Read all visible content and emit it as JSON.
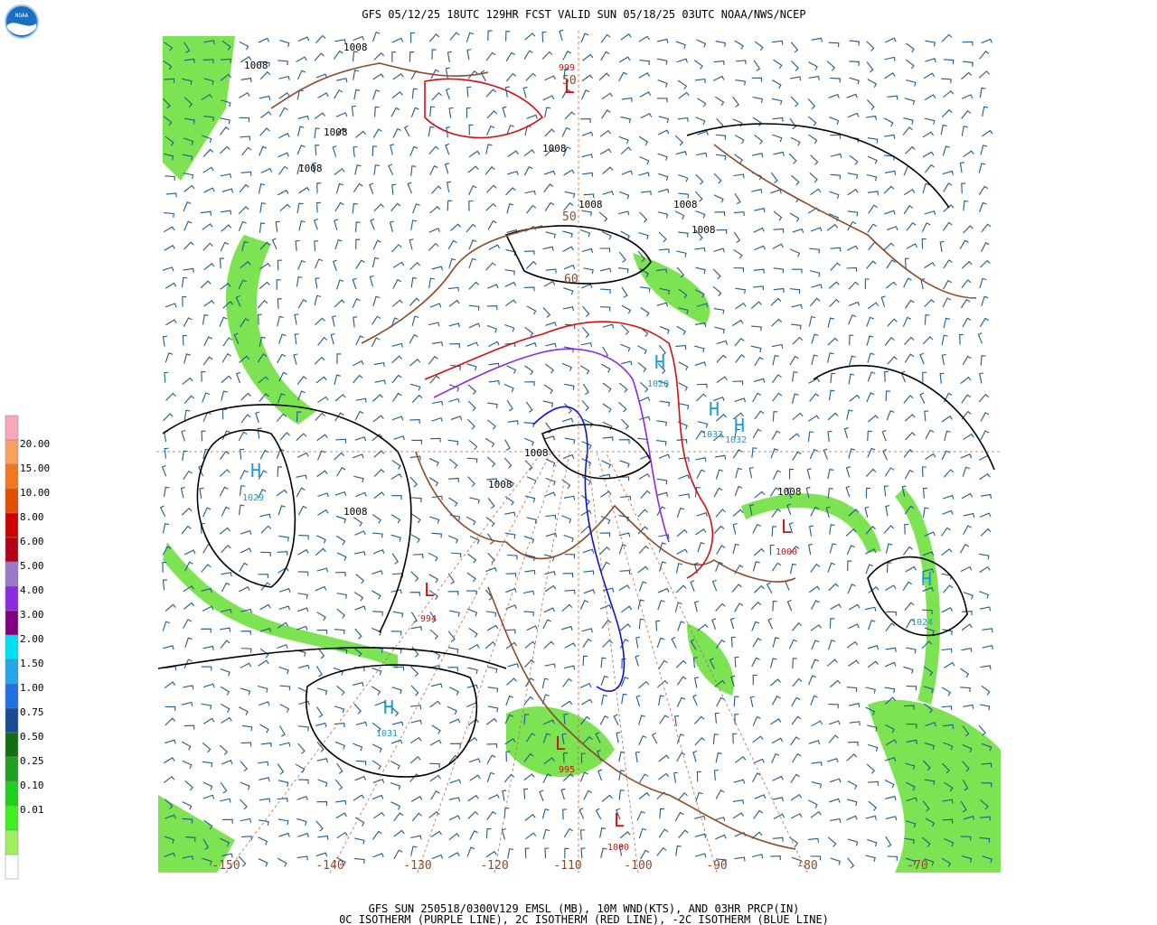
{
  "header": {
    "title": "GFS 05/12/25 18UTC 129HR FCST VALID SUN 05/18/25 03UTC NOAA/NWS/NCEP",
    "logo": "NOAA"
  },
  "footer": {
    "line1": "GFS SUN 250518/0300V129 EMSL (MB), 10M WND(KTS), AND 03HR PRCP(IN)",
    "line2": "0C ISOTHERM (PURPLE LINE), 2C ISOTHERM (RED LINE), -2C ISOTHERM (BLUE LINE)"
  },
  "legend": {
    "labels": [
      "20.00",
      "15.00",
      "10.00",
      "8.00",
      "6.00",
      "5.00",
      "4.00",
      "3.00",
      "2.00",
      "1.50",
      "1.00",
      "0.75",
      "0.50",
      "0.25",
      "0.10",
      "0.01"
    ],
    "colors": [
      "#f8a8b8",
      "#f8a060",
      "#f07820",
      "#e05000",
      "#d00000",
      "#b0001a",
      "#9a78c8",
      "#8a2be2",
      "#800080",
      "#00e0f0",
      "#20a8e8",
      "#2070e0",
      "#1a4a90",
      "#107010",
      "#20a020",
      "#20d020",
      "#40f020",
      "#a0f060",
      "#ffffff"
    ]
  },
  "longitudes": [
    "-150",
    "-140",
    "-130",
    "-120",
    "-110",
    "-100",
    "-90",
    "-80",
    "-70"
  ],
  "latitudes": [
    "50",
    "50",
    "60"
  ],
  "pressure_centers": [
    {
      "symbol": "H",
      "value": "1029",
      "color": "#1a9ad6"
    },
    {
      "symbol": "H",
      "value": "1031",
      "color": "#1a9ad6"
    },
    {
      "symbol": "H",
      "value": "1033",
      "color": "#1a9ad6"
    },
    {
      "symbol": "H",
      "value": "1032",
      "color": "#1a9ad6"
    },
    {
      "symbol": "H",
      "value": "1024",
      "color": "#1a9ad6"
    },
    {
      "symbol": "H",
      "value": "1028",
      "color": "#1a9ad6"
    },
    {
      "symbol": "L",
      "value": "999",
      "color": "#d01010"
    },
    {
      "symbol": "L",
      "value": "1000",
      "color": "#d01010"
    },
    {
      "symbol": "L",
      "value": "1000",
      "color": "#d01010"
    },
    {
      "symbol": "L",
      "value": "995",
      "color": "#d01010"
    },
    {
      "symbol": "L",
      "value": "994",
      "color": "#d01010"
    }
  ],
  "isobar_labels": [
    "1008",
    "1008",
    "1008",
    "1008",
    "1008",
    "1008",
    "1008",
    "1008",
    "1008",
    "1008",
    "1008",
    "1008"
  ]
}
